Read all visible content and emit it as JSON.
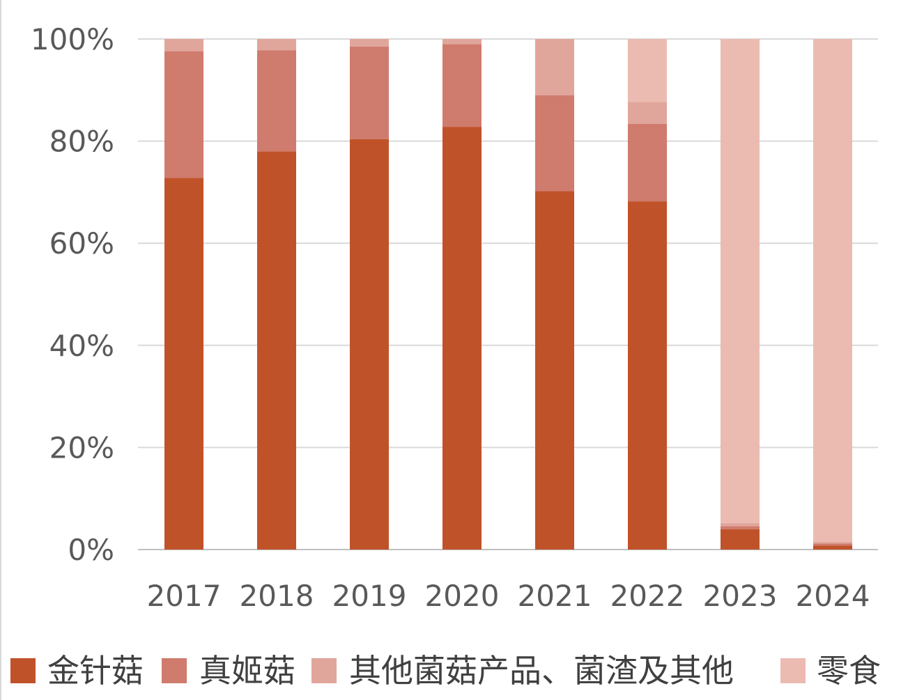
{
  "chart_data": {
    "type": "bar",
    "stacked": true,
    "percent_stacked": true,
    "title": "",
    "xlabel": "",
    "ylabel": "",
    "ylim": [
      0,
      100
    ],
    "yticks": [
      "0%",
      "20%",
      "40%",
      "60%",
      "80%",
      "100%"
    ],
    "categories": [
      "2017",
      "2018",
      "2019",
      "2020",
      "2021",
      "2022",
      "2023",
      "2024"
    ],
    "series": [
      {
        "name": "金针菇",
        "color": "#c0522a",
        "values": [
          72.8,
          78.0,
          80.4,
          82.8,
          70.2,
          68.2,
          4.0,
          0.8
        ]
      },
      {
        "name": "真姬菇",
        "color": "#cf7b6d",
        "values": [
          24.8,
          19.8,
          18.1,
          16.2,
          18.8,
          15.2,
          0.6,
          0.4
        ]
      },
      {
        "name": "其他菌菇产品、菌渣及其他",
        "color": "#e1a69b",
        "values": [
          2.4,
          2.2,
          1.5,
          1.0,
          11.0,
          4.3,
          0.6,
          0.3
        ]
      },
      {
        "name": "零食",
        "color": "#ebbbb2",
        "values": [
          0,
          0,
          0,
          0,
          0,
          12.3,
          94.8,
          98.5
        ]
      }
    ],
    "grid": true,
    "legend_position": "bottom"
  }
}
